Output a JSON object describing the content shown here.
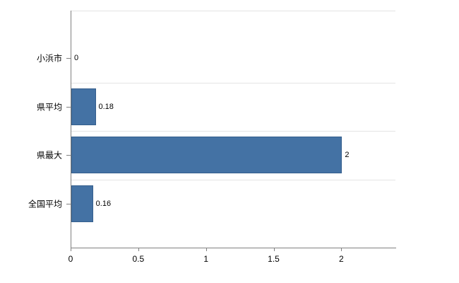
{
  "chart_data": {
    "type": "bar",
    "orientation": "horizontal",
    "title": "",
    "categories": [
      "小浜市",
      "県平均",
      "県最大",
      "全国平均"
    ],
    "values": [
      0,
      0.18,
      2,
      0.16
    ],
    "value_labels": [
      "0",
      "0.18",
      "2",
      "0.16"
    ],
    "xlabel": "",
    "ylabel": "",
    "xlim": [
      0,
      2.4
    ],
    "xticks": [
      0,
      0.5,
      1,
      1.5,
      2
    ],
    "xtick_labels": [
      "0",
      "0.5",
      "1",
      "1.5",
      "2"
    ],
    "grid": "horizontal-band-boundary-lines",
    "legend": "none",
    "colors": {
      "bar_fill": "#4472a4",
      "bar_border": "#355f8d",
      "gridline": "#e4e4e4",
      "axis": "#808080",
      "text": "#000000",
      "background": "#ffffff"
    }
  }
}
